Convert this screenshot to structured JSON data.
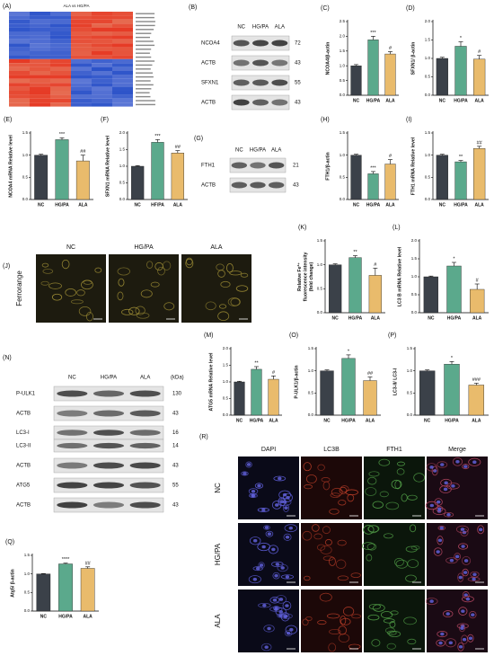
{
  "heatmap": {
    "label": "(A)",
    "title": "ALA vs HG/PA"
  },
  "blots": [
    {
      "label": "(B)",
      "lanes": [
        "NC",
        "HG/PA",
        "ALA"
      ],
      "rows": [
        {
          "name": "NCOA4",
          "kda": "72"
        },
        {
          "name": "ACTB",
          "kda": "43"
        },
        {
          "name": "SFXN1",
          "kda": "55"
        },
        {
          "name": "ACTB",
          "kda": "43"
        }
      ]
    },
    {
      "label": "(G)",
      "lanes": [
        "NC",
        "HG/PA",
        "ALA"
      ],
      "rows": [
        {
          "name": "FTH1",
          "kda": "21"
        },
        {
          "name": "ACTB",
          "kda": "43"
        }
      ]
    },
    {
      "label": "(N)",
      "lanes": [
        "NC",
        "HG/PA",
        "ALA"
      ],
      "unit": "(kDa)",
      "rows": [
        {
          "name": "P-ULK1",
          "kda": "130"
        },
        {
          "name": "ACTB",
          "kda": "43"
        },
        {
          "name": "LC3-I",
          "kda": "16"
        },
        {
          "name": "LC3-II",
          "kda": "14"
        },
        {
          "name": "ACTB",
          "kda": "43"
        },
        {
          "name": "ATG5",
          "kda": "55"
        },
        {
          "name": "ACTB",
          "kda": "43"
        }
      ]
    }
  ],
  "images": [
    {
      "label": "(J)",
      "columns": [
        "NC",
        "HG/PA",
        "ALA"
      ],
      "rows": [
        "Ferrorange"
      ]
    },
    {
      "label": "(R)",
      "columns": [
        "DAPI",
        "LC3B",
        "FTH1",
        "Merge"
      ],
      "rows": [
        "NC",
        "HG/PA",
        "ALA"
      ]
    }
  ],
  "chart_data": [
    {
      "type": "bar",
      "label": "(C)",
      "ylabel": "NCOA4/β-actin",
      "categories": [
        "NC",
        "HG/PA",
        "ALA"
      ],
      "colors": [
        "#3b4149",
        "#5ba98c",
        "#e9bb6c"
      ],
      "values": [
        1.0,
        1.88,
        1.4
      ],
      "errors": [
        0.04,
        0.12,
        0.08
      ],
      "significance": [
        null,
        "***",
        "#"
      ],
      "ylim": [
        0,
        2.5
      ],
      "yticks": [
        {
          "value": 0,
          "label": "0.0"
        },
        {
          "value": 0.5,
          "label": "0.5"
        },
        {
          "value": 1,
          "label": "1.0"
        },
        {
          "value": 1.5,
          "label": "1.5"
        },
        {
          "value": 2,
          "label": "2.0"
        },
        {
          "value": 2.5,
          "label": "2.5"
        }
      ]
    },
    {
      "type": "bar",
      "label": "(D)",
      "ylabel": "SFXN1/ β-actin",
      "categories": [
        "NC",
        "HG/PA",
        "ALA"
      ],
      "colors": [
        "#3b4149",
        "#5ba98c",
        "#e9bb6c"
      ],
      "values": [
        1.0,
        1.33,
        0.98
      ],
      "errors": [
        0.03,
        0.12,
        0.1
      ],
      "significance": [
        null,
        "*",
        "#"
      ],
      "ylim": [
        0,
        2.0
      ],
      "yticks": [
        {
          "value": 0,
          "label": "0.0"
        },
        {
          "value": 0.5,
          "label": "0.5"
        },
        {
          "value": 1,
          "label": "1.0"
        },
        {
          "value": 1.5,
          "label": "1.5"
        },
        {
          "value": 2,
          "label": "2.0"
        }
      ]
    },
    {
      "type": "bar",
      "label": "(E)",
      "ylabel": "NCOA4 mRNA Relative level",
      "categories": [
        "NC",
        "HG/PA",
        "ALA"
      ],
      "colors": [
        "#3b4149",
        "#5ba98c",
        "#e9bb6c"
      ],
      "values": [
        1.0,
        1.35,
        0.87
      ],
      "errors": [
        0.02,
        0.04,
        0.13
      ],
      "significance": [
        null,
        "***",
        "##"
      ],
      "ylim": [
        0,
        1.5
      ],
      "yticks": [
        {
          "value": 0,
          "label": "0.0"
        },
        {
          "value": 0.5,
          "label": "0.5"
        },
        {
          "value": 1,
          "label": "1.0"
        },
        {
          "value": 1.5,
          "label": "1.5"
        }
      ]
    },
    {
      "type": "bar",
      "label": "(F)",
      "ylabel": "SFXN1 mRNA Relative level",
      "categories": [
        "NC",
        "HF/PA",
        "ALA"
      ],
      "colors": [
        "#3b4149",
        "#5ba98c",
        "#e9bb6c"
      ],
      "values": [
        1.0,
        1.72,
        1.4
      ],
      "errors": [
        0.02,
        0.08,
        0.07
      ],
      "significance": [
        null,
        "***",
        "##"
      ],
      "ylim": [
        0,
        2.0
      ],
      "yticks": [
        {
          "value": 0,
          "label": "0.0"
        },
        {
          "value": 0.5,
          "label": "0.5"
        },
        {
          "value": 1,
          "label": "1.0"
        },
        {
          "value": 1.5,
          "label": "1.5"
        },
        {
          "value": 2,
          "label": "2.0"
        }
      ]
    },
    {
      "type": "bar",
      "label": "(H)",
      "ylabel": "FTH1/β-actin",
      "categories": [
        "NC",
        "HG/PA",
        "ALA"
      ],
      "colors": [
        "#3b4149",
        "#5ba98c",
        "#e9bb6c"
      ],
      "values": [
        1.0,
        0.58,
        0.8
      ],
      "errors": [
        0.02,
        0.05,
        0.1
      ],
      "significance": [
        null,
        "***",
        "#"
      ],
      "ylim": [
        0,
        1.5
      ],
      "yticks": [
        {
          "value": 0,
          "label": "0.0"
        },
        {
          "value": 0.5,
          "label": "0.5"
        },
        {
          "value": 1,
          "label": "1.0"
        },
        {
          "value": 1.5,
          "label": "1.5"
        }
      ]
    },
    {
      "type": "bar",
      "label": "(I)",
      "ylabel": "FTH1 mRNA Relative level",
      "categories": [
        "NC",
        "HG/PA",
        "ALA"
      ],
      "colors": [
        "#3b4149",
        "#5ba98c",
        "#e9bb6c"
      ],
      "values": [
        1.0,
        0.85,
        1.15
      ],
      "errors": [
        0.02,
        0.03,
        0.05
      ],
      "significance": [
        null,
        "**",
        "##"
      ],
      "ylim": [
        0,
        1.5
      ],
      "yticks": [
        {
          "value": 0,
          "label": "0.0"
        },
        {
          "value": 0.5,
          "label": "0.5"
        },
        {
          "value": 1,
          "label": "1.0"
        },
        {
          "value": 1.5,
          "label": "1.5"
        }
      ]
    },
    {
      "type": "bar",
      "label": "(K)",
      "ylabel": [
        "Relative Fe²⁺",
        "fluorescence intensity",
        "(fold change)"
      ],
      "categories": [
        "NC",
        "HG/PA",
        "ALA"
      ],
      "colors": [
        "#3b4149",
        "#5ba98c",
        "#e9bb6c"
      ],
      "values": [
        1.0,
        1.15,
        0.78
      ],
      "errors": [
        0.02,
        0.04,
        0.15
      ],
      "significance": [
        null,
        "**",
        "#"
      ],
      "ylim": [
        0,
        1.5
      ],
      "yticks": [
        {
          "value": 0,
          "label": "0.0"
        },
        {
          "value": 0.5,
          "label": "0.5"
        },
        {
          "value": 1,
          "label": "1.0"
        },
        {
          "value": 1.5,
          "label": "1.5"
        }
      ]
    },
    {
      "type": "bar",
      "label": "(L)",
      "ylabel": "LC3 B mRNA Relative level",
      "categories": [
        "NC",
        "HG/PA",
        "ALA"
      ],
      "colors": [
        "#3b4149",
        "#5ba98c",
        "#e9bb6c"
      ],
      "values": [
        1.0,
        1.3,
        0.65
      ],
      "errors": [
        0.02,
        0.1,
        0.15
      ],
      "significance": [
        null,
        "*",
        "#"
      ],
      "ylim": [
        0,
        2.0
      ],
      "yticks": [
        {
          "value": 0,
          "label": "0.0"
        },
        {
          "value": 0.5,
          "label": "0.5"
        },
        {
          "value": 1,
          "label": "1.0"
        },
        {
          "value": 1.5,
          "label": "1.5"
        },
        {
          "value": 2,
          "label": "2.0"
        }
      ]
    },
    {
      "type": "bar",
      "label": "(M)",
      "ylabel": "ATG5 mRNA Relative level",
      "categories": [
        "NC",
        "HG/PA",
        "ALA"
      ],
      "colors": [
        "#3b4149",
        "#5ba98c",
        "#e9bb6c"
      ],
      "values": [
        1.0,
        1.38,
        1.08
      ],
      "errors": [
        0.02,
        0.08,
        0.1
      ],
      "significance": [
        null,
        "**",
        "#"
      ],
      "ylim": [
        0,
        2.0
      ],
      "yticks": [
        {
          "value": 0,
          "label": "0.0"
        },
        {
          "value": 0.5,
          "label": "0.5"
        },
        {
          "value": 1,
          "label": "1.0"
        },
        {
          "value": 1.5,
          "label": "1.5"
        },
        {
          "value": 2,
          "label": "2.0"
        }
      ]
    },
    {
      "type": "bar",
      "label": "(O)",
      "ylabel": "P-ULK1/β-actin",
      "categories": [
        "NC",
        "HG/PA",
        "ALA"
      ],
      "colors": [
        "#3b4149",
        "#5ba98c",
        "#e9bb6c"
      ],
      "values": [
        1.0,
        1.28,
        0.78
      ],
      "errors": [
        0.02,
        0.08,
        0.08
      ],
      "significance": [
        null,
        "*",
        "##"
      ],
      "ylim": [
        0,
        1.5
      ],
      "yticks": [
        {
          "value": 0,
          "label": "0.0"
        },
        {
          "value": 0.5,
          "label": "0.5"
        },
        {
          "value": 1,
          "label": "1.0"
        },
        {
          "value": 1.5,
          "label": "1.5"
        }
      ]
    },
    {
      "type": "bar",
      "label": "(P)",
      "ylabel": "LC3-II/ LC3-I",
      "categories": [
        "NC",
        "HG/PA",
        "ALA"
      ],
      "colors": [
        "#3b4149",
        "#5ba98c",
        "#e9bb6c"
      ],
      "values": [
        1.0,
        1.15,
        0.68
      ],
      "errors": [
        0.02,
        0.06,
        0.04
      ],
      "significance": [
        null,
        "*",
        "###"
      ],
      "ylim": [
        0,
        1.5
      ],
      "yticks": [
        {
          "value": 0,
          "label": "0.0"
        },
        {
          "value": 0.5,
          "label": "0.5"
        },
        {
          "value": 1,
          "label": "1.0"
        },
        {
          "value": 1.5,
          "label": "1.5"
        }
      ]
    },
    {
      "type": "bar",
      "label": "(Q)",
      "ylabel": "Atg5/ β-actin",
      "categories": [
        "NC",
        "HG/PA",
        "ALA"
      ],
      "colors": [
        "#3b4149",
        "#5ba98c",
        "#e9bb6c"
      ],
      "values": [
        1.0,
        1.27,
        1.15
      ],
      "errors": [
        0.01,
        0.02,
        0.04
      ],
      "significance": [
        null,
        "****",
        "##"
      ],
      "ylim": [
        0,
        1.5
      ],
      "yticks": [
        {
          "value": 0,
          "label": "0.0"
        },
        {
          "value": 0.5,
          "label": "0.5"
        },
        {
          "value": 1,
          "label": "1.0"
        },
        {
          "value": 1.5,
          "label": "1.5"
        }
      ]
    }
  ]
}
